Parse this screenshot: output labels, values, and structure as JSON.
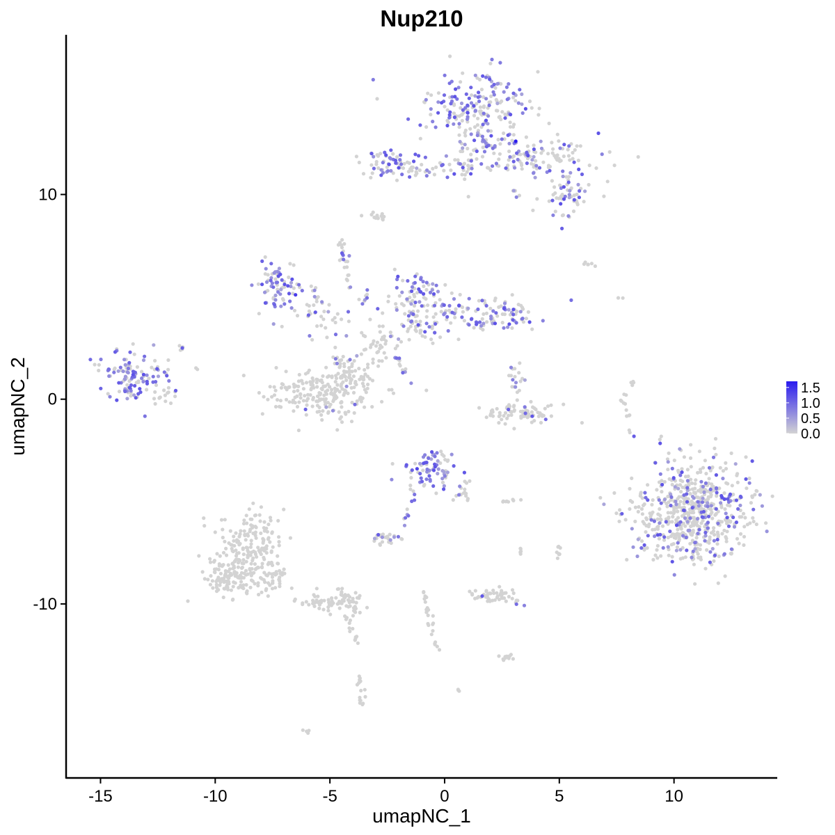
{
  "chart_data": {
    "type": "scatter",
    "title": "Nup210",
    "xlabel": "umapNC_1",
    "ylabel": "umapNC_2",
    "xlim": [
      -16.5,
      14.5
    ],
    "ylim": [
      -18.5,
      17.8
    ],
    "x_ticks": [
      -15,
      -10,
      -5,
      0,
      5,
      10
    ],
    "x_tick_labels": [
      "-15",
      "-10",
      "-5",
      "0",
      "5",
      "10"
    ],
    "y_ticks": [
      -10,
      0,
      10
    ],
    "y_tick_labels": [
      "-10",
      "0",
      "10"
    ],
    "legend": {
      "placement": "right",
      "range": [
        0,
        1.7
      ],
      "breaks": [
        0.0,
        0.5,
        1.0,
        1.5
      ],
      "labels": [
        "0.0",
        "0.5",
        "1.0",
        "1.5"
      ],
      "low_color": "#d3d3d3",
      "high_color": "#2a1bef"
    },
    "grid": false,
    "clusters": [
      {
        "cx": 1.5,
        "cy": 14.2,
        "sx": 1.1,
        "sy": 1.0,
        "n": 220,
        "expr_frac": 0.55
      },
      {
        "cx": 3.9,
        "cy": 11.9,
        "sx": 1.3,
        "sy": 0.55,
        "n": 130,
        "expr_frac": 0.3
      },
      {
        "cx": 5.3,
        "cy": 9.9,
        "sx": 0.6,
        "sy": 0.55,
        "n": 55,
        "expr_frac": 0.35
      },
      {
        "cx": -2.3,
        "cy": 11.6,
        "sx": 0.7,
        "sy": 0.4,
        "n": 60,
        "expr_frac": 0.5
      },
      {
        "cx": -0.6,
        "cy": 11.2,
        "sx": 0.9,
        "sy": 0.2,
        "n": 30,
        "expr_frac": 0.3
      },
      {
        "cx": 1.2,
        "cy": 11.5,
        "sx": 0.4,
        "sy": 0.6,
        "n": 25,
        "expr_frac": 0.3
      },
      {
        "cx": -2.8,
        "cy": 8.9,
        "sx": 0.3,
        "sy": 0.15,
        "n": 14,
        "expr_frac": 0.0
      },
      {
        "cx": -7.3,
        "cy": 5.5,
        "sx": 0.5,
        "sy": 0.6,
        "n": 70,
        "expr_frac": 0.6
      },
      {
        "cx": -5.6,
        "cy": 4.1,
        "sx": 0.9,
        "sy": 0.6,
        "n": 40,
        "expr_frac": 0.25
      },
      {
        "cx": -4.4,
        "cy": 7.3,
        "sx": 0.15,
        "sy": 0.3,
        "n": 14,
        "expr_frac": 0.4
      },
      {
        "cx": -1.2,
        "cy": 5.0,
        "sx": 0.7,
        "sy": 0.6,
        "n": 80,
        "expr_frac": 0.4
      },
      {
        "cx": 1.8,
        "cy": 4.2,
        "sx": 1.2,
        "sy": 0.45,
        "n": 110,
        "expr_frac": 0.4
      },
      {
        "cx": -1.3,
        "cy": 3.6,
        "sx": 0.9,
        "sy": 0.5,
        "n": 55,
        "expr_frac": 0.2
      },
      {
        "cx": -2.8,
        "cy": 2.6,
        "sx": 0.4,
        "sy": 0.4,
        "n": 30,
        "expr_frac": 0.1
      },
      {
        "cx": -13.5,
        "cy": 1.1,
        "sx": 0.75,
        "sy": 0.6,
        "n": 120,
        "expr_frac": 0.55
      },
      {
        "cx": -12.2,
        "cy": 0.3,
        "sx": 0.3,
        "sy": 0.3,
        "n": 15,
        "expr_frac": 0.1
      },
      {
        "cx": -11.5,
        "cy": 2.6,
        "sx": 0.1,
        "sy": 0.15,
        "n": 5,
        "expr_frac": 0.3
      },
      {
        "cx": -5.3,
        "cy": 0.3,
        "sx": 1.2,
        "sy": 0.6,
        "n": 220,
        "expr_frac": 0.04
      },
      {
        "cx": -4.0,
        "cy": 1.2,
        "sx": 0.5,
        "sy": 0.5,
        "n": 40,
        "expr_frac": 0.05
      },
      {
        "cx": 3.4,
        "cy": -0.7,
        "sx": 0.9,
        "sy": 0.25,
        "n": 80,
        "expr_frac": 0.03
      },
      {
        "cx": 3.2,
        "cy": 0.9,
        "sx": 0.15,
        "sy": 0.35,
        "n": 18,
        "expr_frac": 0.4
      },
      {
        "cx": 10.8,
        "cy": -5.4,
        "sx": 1.25,
        "sy": 1.25,
        "n": 650,
        "expr_frac": 0.25
      },
      {
        "cx": -0.6,
        "cy": -3.5,
        "sx": 0.55,
        "sy": 0.5,
        "n": 80,
        "expr_frac": 0.55
      },
      {
        "cx": 0.9,
        "cy": -4.6,
        "sx": 0.2,
        "sy": 0.3,
        "n": 15,
        "expr_frac": 0.1
      },
      {
        "cx": -2.6,
        "cy": -6.8,
        "sx": 0.45,
        "sy": 0.15,
        "n": 25,
        "expr_frac": 0.2
      },
      {
        "cx": -8.4,
        "cy": -7.3,
        "sx": 0.7,
        "sy": 0.9,
        "n": 170,
        "expr_frac": 0.01
      },
      {
        "cx": -9.5,
        "cy": -8.7,
        "sx": 0.55,
        "sy": 0.45,
        "n": 90,
        "expr_frac": 0.0
      },
      {
        "cx": -7.8,
        "cy": -8.7,
        "sx": 0.6,
        "sy": 0.4,
        "n": 60,
        "expr_frac": 0.0
      },
      {
        "cx": -5.0,
        "cy": -9.9,
        "sx": 0.8,
        "sy": 0.25,
        "n": 60,
        "expr_frac": 0.0
      },
      {
        "cx": 2.3,
        "cy": -9.6,
        "sx": 0.6,
        "sy": 0.2,
        "n": 50,
        "expr_frac": 0.03
      },
      {
        "cx": 2.7,
        "cy": -12.6,
        "sx": 0.2,
        "sy": 0.1,
        "n": 12,
        "expr_frac": 0.0
      },
      {
        "cx": 2.9,
        "cy": -5.0,
        "sx": 0.3,
        "sy": 0.05,
        "n": 8,
        "expr_frac": 0.0
      },
      {
        "cx": 6.3,
        "cy": 6.6,
        "sx": 0.2,
        "sy": 0.05,
        "n": 6,
        "expr_frac": 0.0
      },
      {
        "cx": 7.8,
        "cy": -0.2,
        "sx": 0.1,
        "sy": 0.3,
        "n": 8,
        "expr_frac": 0.1
      },
      {
        "cx": 8.2,
        "cy": 0.8,
        "sx": 0.05,
        "sy": 0.2,
        "n": 4,
        "expr_frac": 0.0
      },
      {
        "cx": 5.0,
        "cy": -7.5,
        "sx": 0.1,
        "sy": 0.2,
        "n": 8,
        "expr_frac": 0.0
      },
      {
        "cx": 3.3,
        "cy": -7.4,
        "sx": 0.05,
        "sy": 0.2,
        "n": 5,
        "expr_frac": 0.0
      },
      {
        "cx": -6.0,
        "cy": -16.2,
        "sx": 0.1,
        "sy": 0.05,
        "n": 4,
        "expr_frac": 0.0
      },
      {
        "cx": 0.6,
        "cy": -14.2,
        "sx": 0.05,
        "sy": 0.05,
        "n": 3,
        "expr_frac": 0.0
      },
      {
        "cx": 7.6,
        "cy": 4.8,
        "sx": 0.05,
        "sy": 0.1,
        "n": 2,
        "expr_frac": 0.0
      },
      {
        "cx": -10.8,
        "cy": 1.5,
        "sx": 0.05,
        "sy": 0.05,
        "n": 2,
        "expr_frac": 0.0
      }
    ],
    "trails": [
      {
        "from": [
          -4.6,
          -9.3
        ],
        "to": [
          -3.8,
          -10.4
        ],
        "n": 25,
        "spread": 0.2,
        "expr_frac": 0.0
      },
      {
        "from": [
          -4.3,
          -10.6
        ],
        "to": [
          -3.8,
          -12.0
        ],
        "n": 14,
        "spread": 0.15,
        "expr_frac": 0.0
      },
      {
        "from": [
          -3.7,
          -13.5
        ],
        "to": [
          -3.5,
          -15.0
        ],
        "n": 16,
        "spread": 0.2,
        "expr_frac": 0.0
      },
      {
        "from": [
          -0.9,
          -9.5
        ],
        "to": [
          -0.3,
          -12.2
        ],
        "n": 25,
        "spread": 0.15,
        "expr_frac": 0.0
      },
      {
        "from": [
          -1.3,
          -4.3
        ],
        "to": [
          -1.8,
          -6.2
        ],
        "n": 10,
        "spread": 0.1,
        "expr_frac": 0.6
      },
      {
        "from": [
          -4.4,
          6.9
        ],
        "to": [
          -4.1,
          5.4
        ],
        "n": 10,
        "spread": 0.1,
        "expr_frac": 0.2
      },
      {
        "from": [
          -5.8,
          5.5
        ],
        "to": [
          -5.4,
          4.3
        ],
        "n": 8,
        "spread": 0.1,
        "expr_frac": 0.3
      },
      {
        "from": [
          -3.3,
          5.4
        ],
        "to": [
          -3.8,
          4.0
        ],
        "n": 8,
        "spread": 0.1,
        "expr_frac": 0.5
      },
      {
        "from": [
          -2.2,
          2.3
        ],
        "to": [
          -1.5,
          0.8
        ],
        "n": 14,
        "spread": 0.1,
        "expr_frac": 0.4
      },
      {
        "from": [
          -4.8,
          2.2
        ],
        "to": [
          -4.6,
          1.5
        ],
        "n": 6,
        "spread": 0.1,
        "expr_frac": 0.3
      },
      {
        "from": [
          3.0,
          10.3
        ],
        "to": [
          3.2,
          9.8
        ],
        "n": 6,
        "spread": 0.1,
        "expr_frac": 0.3
      },
      {
        "from": [
          8.0,
          -0.5
        ],
        "to": [
          8.1,
          -1.7
        ],
        "n": 4,
        "spread": 0.05,
        "expr_frac": 0.0
      }
    ],
    "highlights": [
      {
        "x": 3.1,
        "y": 12.6,
        "value": 1.7
      },
      {
        "x": -6.5,
        "y": 5.1,
        "value": 1.4
      },
      {
        "x": -1.2,
        "y": -3.4,
        "value": 1.3
      },
      {
        "x": 2.2,
        "y": 3.7,
        "value": 1.2
      },
      {
        "x": -2.0,
        "y": 11.3,
        "value": 1.2
      },
      {
        "x": -14.2,
        "y": 0.8,
        "value": 1.1
      },
      {
        "x": 1.0,
        "y": 14.0,
        "value": 1.2
      }
    ]
  }
}
